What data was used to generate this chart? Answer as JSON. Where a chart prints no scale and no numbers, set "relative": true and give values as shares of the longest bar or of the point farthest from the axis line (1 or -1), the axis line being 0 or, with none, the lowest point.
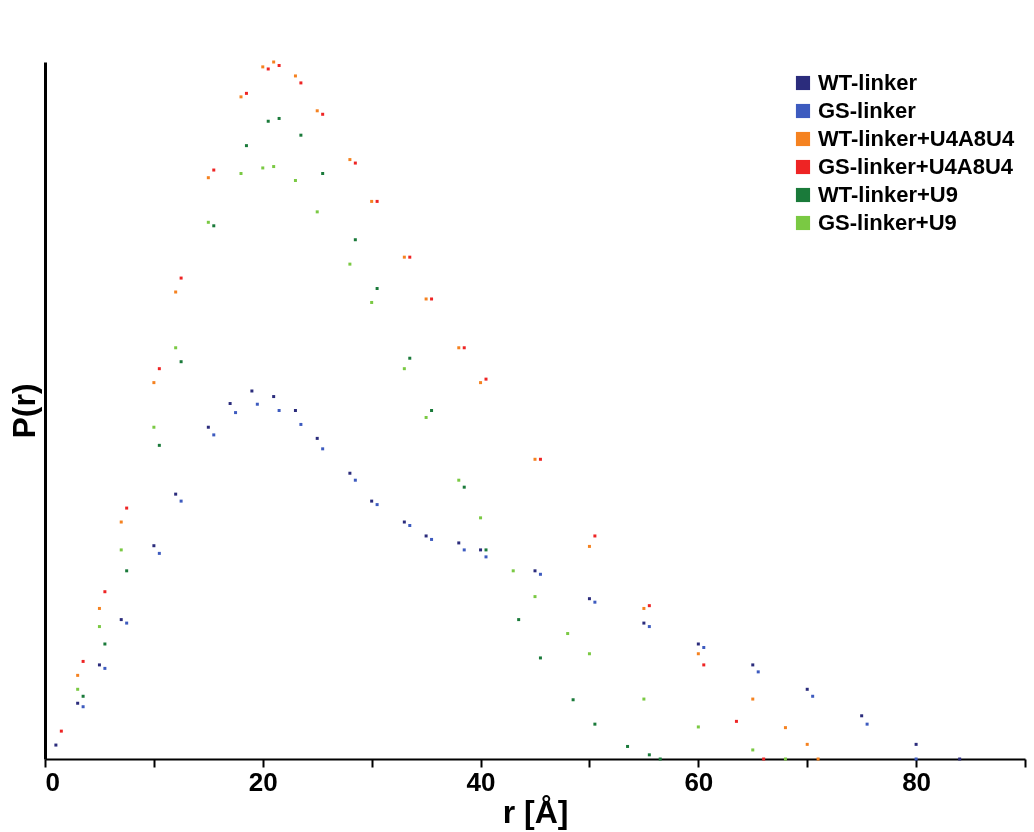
{
  "chart_data": {
    "type": "scatter",
    "xlabel": "r [Å]",
    "ylabel": "P(r)",
    "relative": true,
    "marker": "square",
    "legend": "top right",
    "grid": false,
    "xlim": [
      0,
      90
    ],
    "xticks": [
      0,
      {
        "value": 10,
        "label": null
      },
      20,
      {
        "value": 30,
        "label": null
      },
      40,
      {
        "value": 50,
        "label": null
      },
      60,
      {
        "value": 70,
        "label": null
      },
      80,
      {
        "value": 90,
        "label": null
      }
    ],
    "series": [
      {
        "name": "WT-linker",
        "color": "#2b2c7c",
        "x": [
          1,
          3,
          5,
          7,
          10,
          12,
          15,
          17,
          19,
          21,
          23,
          25,
          28,
          30,
          33,
          35,
          38,
          40,
          45,
          50,
          55,
          60,
          65,
          70,
          75,
          80,
          84
        ],
        "values": [
          0.02,
          0.08,
          0.135,
          0.2,
          0.306,
          0.38,
          0.476,
          0.51,
          0.528,
          0.52,
          0.5,
          0.46,
          0.41,
          0.37,
          0.34,
          0.32,
          0.31,
          0.3,
          0.27,
          0.23,
          0.195,
          0.165,
          0.135,
          0.1,
          0.062,
          0.021,
          0
        ]
      },
      {
        "name": "GS-linker",
        "color": "#3d5bbf",
        "x": [
          3.5,
          5.5,
          7.5,
          10.5,
          12.5,
          15.5,
          17.5,
          19.5,
          21.5,
          23.5,
          25.5,
          28.5,
          30.5,
          33.5,
          35.5,
          38.5,
          40.5,
          45.5,
          50.5,
          55.5,
          60.5,
          65.5,
          70.5,
          75.5,
          80
        ],
        "values": [
          0.075,
          0.13,
          0.195,
          0.295,
          0.37,
          0.465,
          0.497,
          0.509,
          0.5,
          0.48,
          0.445,
          0.4,
          0.365,
          0.335,
          0.315,
          0.3,
          0.29,
          0.265,
          0.225,
          0.19,
          0.16,
          0.125,
          0.09,
          0.05,
          0
        ]
      },
      {
        "name": "WT-linker+U4A8U4",
        "color": "#f58220",
        "x": [
          3,
          5,
          7,
          10,
          12,
          15,
          18,
          20,
          21,
          23,
          25,
          28,
          30,
          33,
          35,
          38,
          40,
          45,
          50,
          55,
          60,
          65,
          68,
          70,
          71
        ],
        "values": [
          0.12,
          0.216,
          0.34,
          0.54,
          0.67,
          0.834,
          0.95,
          0.993,
          1,
          0.98,
          0.93,
          0.86,
          0.8,
          0.72,
          0.66,
          0.59,
          0.54,
          0.43,
          0.305,
          0.216,
          0.151,
          0.086,
          0.045,
          0.021,
          0
        ]
      },
      {
        "name": "GS-linker+U4A8U4",
        "color": "#ee2424",
        "x": [
          1.5,
          3.5,
          5.5,
          7.5,
          10.5,
          12.5,
          15.5,
          18.5,
          20.5,
          21.5,
          23.5,
          25.5,
          28.5,
          30.5,
          33.5,
          35.5,
          38.5,
          40.5,
          45.5,
          50.5,
          55.5,
          60.5,
          63.5,
          66
        ],
        "values": [
          0.04,
          0.14,
          0.24,
          0.36,
          0.56,
          0.69,
          0.845,
          0.955,
          0.99,
          0.995,
          0.97,
          0.925,
          0.855,
          0.8,
          0.72,
          0.66,
          0.59,
          0.545,
          0.43,
          0.32,
          0.22,
          0.135,
          0.054,
          0
        ]
      },
      {
        "name": "WT-linker+U9",
        "color": "#1a7a3a",
        "x": [
          3.5,
          5.5,
          7.5,
          10.5,
          12.5,
          15.5,
          18.5,
          20.5,
          21.5,
          23.5,
          25.5,
          28.5,
          30.5,
          33.5,
          35.5,
          38.5,
          40.5,
          43.5,
          45.5,
          48.5,
          50.5,
          53.5,
          55.5,
          56.5
        ],
        "values": [
          0.09,
          0.165,
          0.27,
          0.45,
          0.57,
          0.765,
          0.88,
          0.915,
          0.919,
          0.895,
          0.84,
          0.745,
          0.675,
          0.575,
          0.5,
          0.39,
          0.3,
          0.2,
          0.145,
          0.085,
          0.05,
          0.018,
          0.006,
          0
        ]
      },
      {
        "name": "GS-linker+U9",
        "color": "#7ac943",
        "x": [
          3,
          5,
          7,
          10,
          12,
          15,
          18,
          20,
          21,
          23,
          25,
          28,
          30,
          33,
          35,
          38,
          40,
          43,
          45,
          48,
          50,
          55,
          60,
          65,
          68
        ],
        "values": [
          0.1,
          0.19,
          0.3,
          0.476,
          0.59,
          0.77,
          0.84,
          0.848,
          0.85,
          0.83,
          0.785,
          0.71,
          0.655,
          0.56,
          0.49,
          0.4,
          0.346,
          0.27,
          0.233,
          0.18,
          0.151,
          0.086,
          0.046,
          0.013,
          0
        ]
      }
    ]
  }
}
